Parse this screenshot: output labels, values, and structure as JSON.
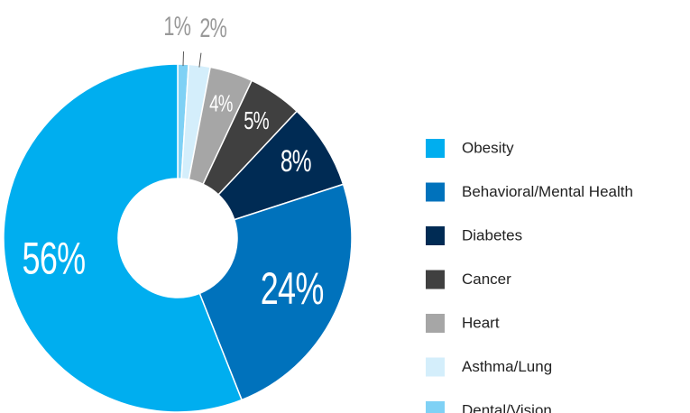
{
  "chart_data": {
    "type": "donut",
    "categories": [
      "Obesity",
      "Behavioral/Mental Health",
      "Diabetes",
      "Cancer",
      "Heart",
      "Asthma/Lung",
      "Dental/Vision"
    ],
    "values": [
      56,
      24,
      8,
      5,
      4,
      2,
      1
    ],
    "value_labels": [
      "56%",
      "24%",
      "8%",
      "5%",
      "4%",
      "2%",
      "1%"
    ],
    "colors": [
      "#00aeef",
      "#0072bc",
      "#002b54",
      "#404040",
      "#a6a6a6",
      "#d4eefb",
      "#7fd1f5"
    ]
  }
}
